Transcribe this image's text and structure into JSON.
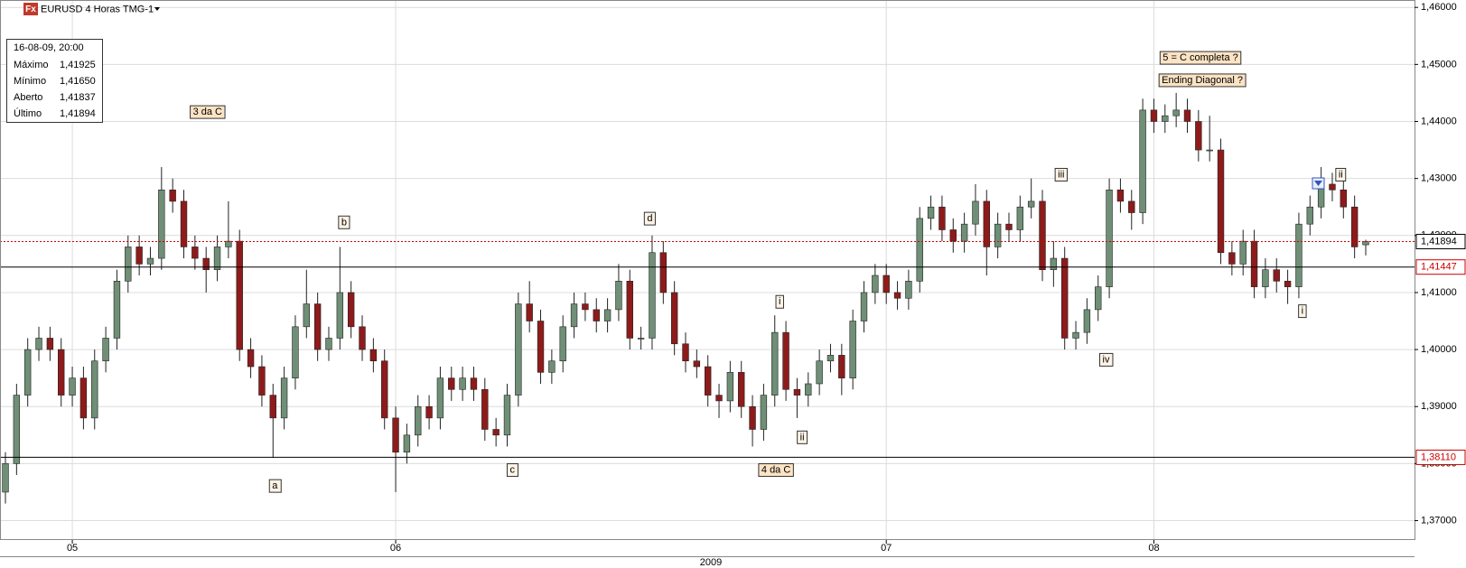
{
  "chart_data": {
    "type": "candlestick",
    "title": "EURUSD 4 Horas TMG-1",
    "icon_text": "Fx",
    "year_label": "2009",
    "up_color": "#6f8f76",
    "down_color": "#8e1b1b",
    "grid": true,
    "ylim": [
      1.3666,
      1.4613
    ],
    "yticks": [
      {
        "value": 1.37,
        "label": "1,37000"
      },
      {
        "value": 1.38,
        "label": "1,38000"
      },
      {
        "value": 1.39,
        "label": "1,39000"
      },
      {
        "value": 1.4,
        "label": "1,40000"
      },
      {
        "value": 1.41,
        "label": "1,41000"
      },
      {
        "value": 1.42,
        "label": "1,42000"
      },
      {
        "value": 1.43,
        "label": "1,43000"
      },
      {
        "value": 1.44,
        "label": "1,44000"
      },
      {
        "value": 1.45,
        "label": "1,45000"
      },
      {
        "value": 1.46,
        "label": "1,46000"
      }
    ],
    "price_lines": [
      {
        "value": 1.41894,
        "label": "1,41894",
        "color": "#cc0000",
        "style": "dotted"
      },
      {
        "value": 1.41447,
        "label": "1,41447",
        "color": "#000000",
        "style": "solid"
      },
      {
        "value": 1.3811,
        "label": "1,38110",
        "color": "#000000",
        "style": "solid"
      }
    ],
    "info_box": {
      "title": "16-08-09, 20:00",
      "rows": [
        [
          "Máximo",
          "1,41925"
        ],
        [
          "Mínimo",
          "1,41650"
        ],
        [
          "Aberto",
          "1,41837"
        ],
        [
          "Último",
          "1,41894"
        ]
      ]
    },
    "annotations": [
      "3 da C",
      "b",
      "d",
      "a",
      "c",
      "4 da C",
      "i",
      "ii",
      "iii",
      "iv",
      "5 = C completa ?",
      "Ending Diagonal ?",
      "i",
      "ii"
    ],
    "categories": [
      null,
      null,
      null,
      null,
      null,
      null,
      "05",
      null,
      null,
      null,
      null,
      null,
      null,
      null,
      null,
      null,
      null,
      null,
      null,
      null,
      null,
      null,
      null,
      null,
      null,
      null,
      null,
      null,
      null,
      null,
      null,
      null,
      null,
      null,
      null,
      "06",
      null,
      null,
      null,
      null,
      null,
      null,
      null,
      null,
      null,
      null,
      null,
      null,
      null,
      null,
      null,
      null,
      null,
      null,
      null,
      null,
      null,
      null,
      null,
      null,
      null,
      null,
      null,
      null,
      null,
      null,
      null,
      null,
      null,
      null,
      null,
      null,
      null,
      null,
      null,
      null,
      null,
      null,
      null,
      "07",
      null,
      null,
      null,
      null,
      null,
      null,
      null,
      null,
      null,
      null,
      null,
      null,
      null,
      null,
      null,
      null,
      null,
      null,
      null,
      null,
      null,
      null,
      null,
      "08",
      null,
      null,
      null,
      null,
      null,
      null,
      null,
      null,
      null,
      null,
      null,
      null,
      null,
      null,
      null,
      null,
      null,
      null,
      null
    ],
    "open": [
      1.375,
      1.38,
      1.392,
      1.4,
      1.402,
      1.4,
      1.392,
      1.395,
      1.388,
      1.398,
      1.402,
      1.412,
      1.418,
      1.415,
      1.416,
      1.428,
      1.426,
      1.418,
      1.416,
      1.414,
      1.418,
      1.419,
      1.4,
      1.397,
      1.392,
      1.388,
      1.395,
      1.404,
      1.408,
      1.4,
      1.402,
      1.41,
      1.404,
      1.4,
      1.398,
      1.388,
      1.382,
      1.385,
      1.39,
      1.388,
      1.395,
      1.393,
      1.395,
      1.393,
      1.386,
      1.385,
      1.392,
      1.408,
      1.405,
      1.396,
      1.398,
      1.404,
      1.408,
      1.407,
      1.405,
      1.407,
      1.412,
      1.402,
      1.402,
      1.417,
      1.41,
      1.401,
      1.398,
      1.397,
      1.392,
      1.391,
      1.396,
      1.39,
      1.386,
      1.392,
      1.403,
      1.393,
      1.392,
      1.394,
      1.398,
      1.399,
      1.395,
      1.405,
      1.41,
      1.413,
      1.41,
      1.409,
      1.412,
      1.423,
      1.425,
      1.421,
      1.419,
      1.422,
      1.426,
      1.418,
      1.422,
      1.421,
      1.425,
      1.426,
      1.414,
      1.416,
      1.402,
      1.403,
      1.407,
      1.411,
      1.428,
      1.426,
      1.424,
      1.442,
      1.44,
      1.441,
      1.442,
      1.44,
      1.435,
      1.435,
      1.417,
      1.415,
      1.419,
      1.411,
      1.414,
      1.412,
      1.411,
      1.422,
      1.425,
      1.429,
      1.428,
      1.425,
      1.41837
    ],
    "high": [
      1.382,
      1.394,
      1.402,
      1.404,
      1.404,
      1.402,
      1.397,
      1.397,
      1.4,
      1.404,
      1.414,
      1.42,
      1.42,
      1.418,
      1.432,
      1.43,
      1.428,
      1.42,
      1.418,
      1.42,
      1.426,
      1.421,
      1.402,
      1.399,
      1.394,
      1.397,
      1.406,
      1.414,
      1.41,
      1.404,
      1.418,
      1.412,
      1.406,
      1.402,
      1.4,
      1.39,
      1.387,
      1.392,
      1.392,
      1.397,
      1.397,
      1.397,
      1.397,
      1.395,
      1.388,
      1.394,
      1.41,
      1.412,
      1.407,
      1.4,
      1.406,
      1.41,
      1.41,
      1.409,
      1.409,
      1.415,
      1.414,
      1.404,
      1.42,
      1.419,
      1.412,
      1.403,
      1.4,
      1.399,
      1.394,
      1.398,
      1.398,
      1.392,
      1.394,
      1.406,
      1.405,
      1.395,
      1.396,
      1.4,
      1.401,
      1.401,
      1.407,
      1.412,
      1.415,
      1.415,
      1.412,
      1.414,
      1.425,
      1.427,
      1.427,
      1.423,
      1.424,
      1.429,
      1.428,
      1.424,
      1.424,
      1.427,
      1.43,
      1.428,
      1.419,
      1.418,
      1.405,
      1.409,
      1.413,
      1.43,
      1.43,
      1.428,
      1.444,
      1.444,
      1.443,
      1.445,
      1.444,
      1.442,
      1.441,
      1.437,
      1.419,
      1.421,
      1.421,
      1.416,
      1.416,
      1.414,
      1.424,
      1.427,
      1.432,
      1.431,
      1.43,
      1.427,
      1.41925
    ],
    "low": [
      1.373,
      1.378,
      1.39,
      1.398,
      1.398,
      1.39,
      1.39,
      1.386,
      1.386,
      1.396,
      1.4,
      1.41,
      1.413,
      1.413,
      1.414,
      1.424,
      1.416,
      1.414,
      1.41,
      1.412,
      1.416,
      1.398,
      1.395,
      1.39,
      1.381,
      1.386,
      1.393,
      1.402,
      1.398,
      1.398,
      1.4,
      1.402,
      1.398,
      1.396,
      1.386,
      1.375,
      1.38,
      1.383,
      1.386,
      1.386,
      1.391,
      1.391,
      1.391,
      1.384,
      1.383,
      1.383,
      1.39,
      1.403,
      1.394,
      1.394,
      1.396,
      1.402,
      1.405,
      1.403,
      1.403,
      1.405,
      1.4,
      1.4,
      1.4,
      1.408,
      1.399,
      1.396,
      1.395,
      1.39,
      1.388,
      1.389,
      1.388,
      1.383,
      1.384,
      1.39,
      1.391,
      1.388,
      1.39,
      1.392,
      1.396,
      1.392,
      1.393,
      1.403,
      1.408,
      1.408,
      1.407,
      1.407,
      1.41,
      1.421,
      1.419,
      1.417,
      1.417,
      1.42,
      1.413,
      1.416,
      1.419,
      1.419,
      1.423,
      1.412,
      1.411,
      1.4,
      1.4,
      1.401,
      1.405,
      1.409,
      1.424,
      1.421,
      1.422,
      1.438,
      1.438,
      1.439,
      1.438,
      1.433,
      1.433,
      1.415,
      1.413,
      1.413,
      1.409,
      1.409,
      1.41,
      1.408,
      1.409,
      1.42,
      1.423,
      1.426,
      1.423,
      1.416,
      1.4165
    ],
    "close": [
      1.38,
      1.392,
      1.4,
      1.402,
      1.4,
      1.392,
      1.395,
      1.388,
      1.398,
      1.402,
      1.412,
      1.418,
      1.415,
      1.416,
      1.428,
      1.426,
      1.418,
      1.416,
      1.414,
      1.418,
      1.419,
      1.4,
      1.397,
      1.392,
      1.388,
      1.395,
      1.404,
      1.408,
      1.4,
      1.402,
      1.41,
      1.404,
      1.4,
      1.398,
      1.388,
      1.382,
      1.385,
      1.39,
      1.388,
      1.395,
      1.393,
      1.395,
      1.393,
      1.386,
      1.385,
      1.392,
      1.408,
      1.405,
      1.396,
      1.398,
      1.404,
      1.408,
      1.407,
      1.405,
      1.407,
      1.412,
      1.402,
      1.402,
      1.417,
      1.41,
      1.401,
      1.398,
      1.397,
      1.392,
      1.391,
      1.396,
      1.39,
      1.386,
      1.392,
      1.403,
      1.393,
      1.392,
      1.394,
      1.398,
      1.399,
      1.395,
      1.405,
      1.41,
      1.413,
      1.41,
      1.409,
      1.412,
      1.423,
      1.425,
      1.421,
      1.419,
      1.422,
      1.426,
      1.418,
      1.422,
      1.421,
      1.425,
      1.426,
      1.414,
      1.416,
      1.402,
      1.403,
      1.407,
      1.411,
      1.428,
      1.426,
      1.424,
      1.442,
      1.44,
      1.441,
      1.442,
      1.44,
      1.435,
      1.435,
      1.417,
      1.415,
      1.419,
      1.411,
      1.414,
      1.412,
      1.411,
      1.422,
      1.425,
      1.429,
      1.428,
      1.425,
      1.418,
      1.41894
    ]
  }
}
